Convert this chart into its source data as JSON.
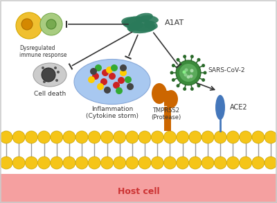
{
  "background_color": "#ffffff",
  "host_cell_color": "#f5a0a0",
  "membrane_ball_color": "#f5c518",
  "membrane_stick_color": "#999999",
  "title": "Host cell",
  "a1at_label": "A1AT",
  "sars_label": "SARS-CoV-2",
  "tmprss2_label": "TMPRSS2\n(Protease)",
  "ace2_label": "ACE2",
  "inflammation_label": "Inflammation\n(Cytokine storm)",
  "cell_death_label": "Cell death",
  "dysregulated_label": "Dysregulated\nimmune response",
  "border_color": "#cccccc"
}
